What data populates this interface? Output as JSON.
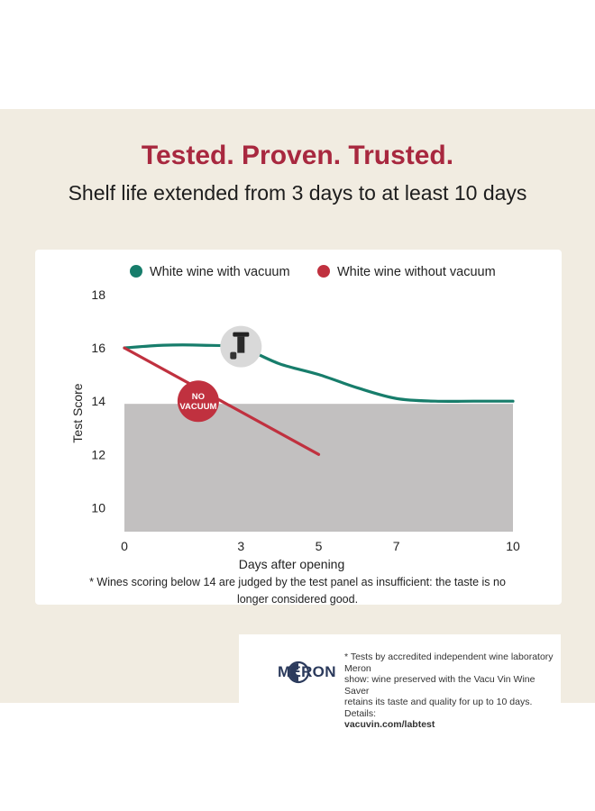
{
  "headline": "Tested. Proven. Trusted.",
  "subtitle": "Shelf life extended from 3 days to at least 10 days",
  "footnote_line1": "* Wines scoring below 14 are judged by the test panel as insufficient: the taste is no",
  "footnote_line2": "longer considered good.",
  "badge_no_vacuum": "NO VACUUM",
  "badge_no_vacuum_line1": "NO",
  "badge_no_vacuum_line2": "VACUUM",
  "lab": {
    "logo_text": "MERON",
    "note_line1": "* Tests by accredited independent wine laboratory Meron",
    "note_line2": "show: wine preserved with the Vacu Vin Wine Saver",
    "note_line3": "retains its taste and quality for up to 10 days. Details:",
    "link": "vacuvin.com/labtest"
  },
  "colors": {
    "with_vacuum": "#177d6b",
    "without_vacuum": "#c0313f",
    "insufficient_zone": "#c2c0c0",
    "headline": "#a8283f",
    "background": "#f1ece1"
  },
  "icons": [
    "wine-saver-pump-icon",
    "meron-logo-icon"
  ],
  "chart_data": {
    "type": "line",
    "title": "",
    "xlabel": "Days after opening",
    "ylabel": "Test Score",
    "xticks": [
      0,
      3,
      5,
      7,
      10
    ],
    "yticks": [
      10,
      12,
      14,
      16,
      18
    ],
    "xlim": [
      0,
      10
    ],
    "ylim": [
      9.1,
      18
    ],
    "legend_position": "top",
    "insufficient_threshold": 13.9,
    "series": [
      {
        "name": "White wine with vacuum",
        "x": [
          0,
          1,
          2,
          3,
          4,
          5,
          6,
          7,
          8,
          9,
          10
        ],
        "y": [
          16.0,
          16.1,
          16.1,
          16.0,
          15.4,
          15.0,
          14.5,
          14.1,
          14.0,
          14.0,
          14.0
        ]
      },
      {
        "name": "White wine without vacuum",
        "x": [
          0,
          5
        ],
        "y": [
          16.0,
          12.0
        ]
      }
    ]
  }
}
